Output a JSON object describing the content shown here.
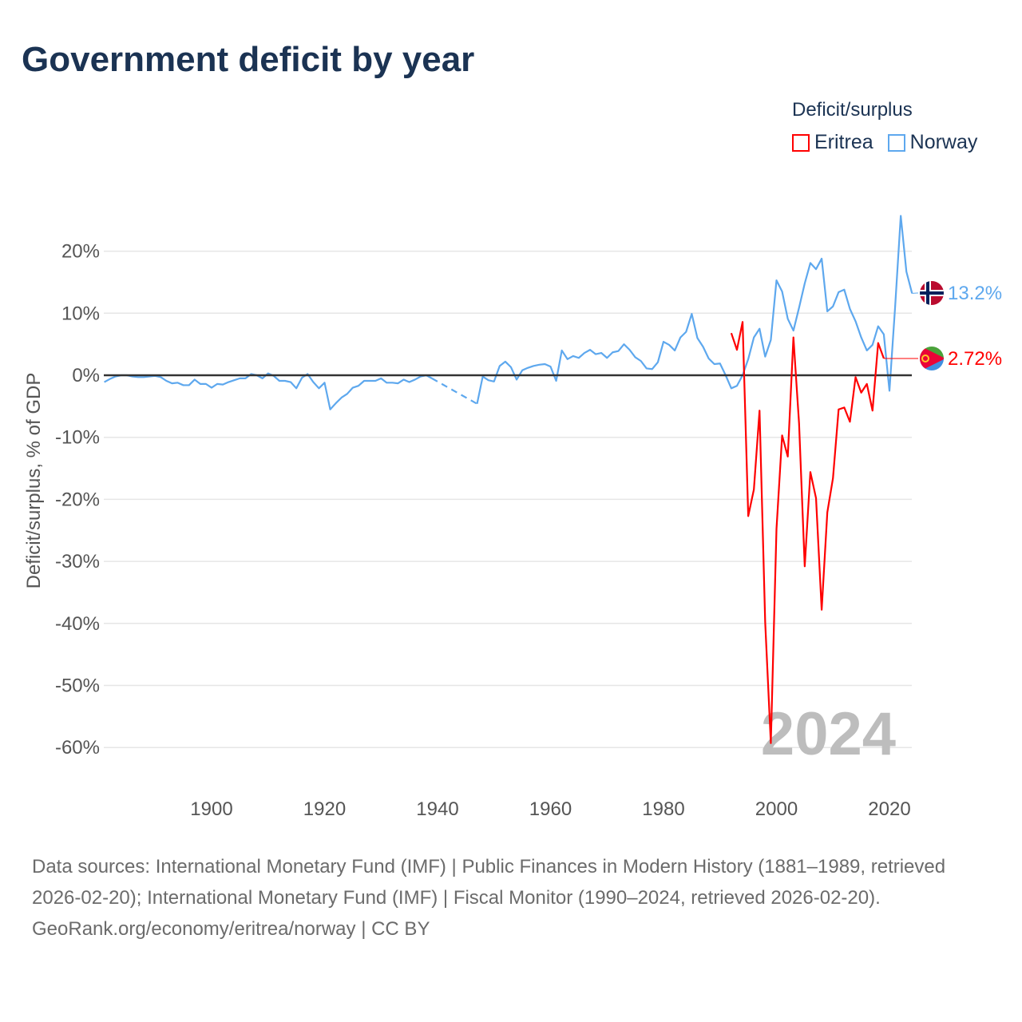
{
  "title": "Government deficit by year",
  "legend": {
    "title": "Deficit/surplus"
  },
  "watermark_year": "2024",
  "footer": {
    "sources": "Data sources: International Monetary Fund (IMF) | Public Finances in Modern History (1881–1989, retrieved 2026-02-20); International Monetary Fund (IMF) | Fiscal Monitor (1990–2024, retrieved 2026-02-20).",
    "credit": "GeoRank.org/economy/eritrea/norway | CC BY"
  },
  "chart_data": {
    "type": "line",
    "title": "Government deficit by year",
    "xlabel": "",
    "ylabel": "Deficit/surplus, % of GDP",
    "xlim": [
      1881,
      2024
    ],
    "ylim": [
      -60,
      25
    ],
    "x_ticks": [
      1900,
      1920,
      1940,
      1960,
      1980,
      2000,
      2020
    ],
    "y_ticks": [
      20,
      10,
      0,
      -10,
      -20,
      -30,
      -40,
      -50,
      -60
    ],
    "y_tick_labels": [
      "20%",
      "10%",
      "0%",
      "-10%",
      "-20%",
      "-30%",
      "-40%",
      "-50%",
      "-60%"
    ],
    "grid": true,
    "legend_position": "top-right",
    "series": [
      {
        "name": "Eritrea",
        "color": "#ff0000",
        "start_year": 1992,
        "values": [
          6.8,
          4.1,
          8.6,
          -22.7,
          -18.4,
          -5.7,
          -39.8,
          -59.3,
          -24.8,
          -9.7,
          -13.1,
          6.1,
          -7.8,
          -30.8,
          -15.6,
          -19.8,
          -37.8,
          -22.1,
          -16.6,
          -5.5,
          -5.2,
          -7.5,
          -0.3,
          -2.8,
          -1.4,
          -5.7,
          5.2,
          2.72
        ],
        "end_label": "2.72%"
      },
      {
        "name": "Norway",
        "color": "#5ea8ee",
        "start_year": 1881,
        "values": [
          -1.1,
          -0.6,
          -0.2,
          0,
          0,
          -0.2,
          -0.3,
          -0.3,
          -0.2,
          -0.1,
          -0.3,
          -0.9,
          -1.3,
          -1.2,
          -1.6,
          -1.6,
          -0.7,
          -1.4,
          -1.4,
          -2.0,
          -1.4,
          -1.5,
          -1.1,
          -0.8,
          -0.5,
          -0.5,
          0.2,
          0,
          -0.5,
          0.3,
          -0.1,
          -0.9,
          -0.9,
          -1.1,
          -2.1,
          -0.4,
          0.2,
          -1.1,
          -2.1,
          -1.2,
          -5.5,
          -4.5,
          -3.6,
          -3.0,
          -2.0,
          -1.7,
          -0.9,
          -0.9,
          -0.9,
          -0.5,
          -1.2,
          -1.2,
          -1.3,
          -0.7,
          -1.1,
          -0.7,
          -0.2,
          0,
          -0.5,
          null,
          null,
          null,
          null,
          null,
          null,
          null,
          -4.6,
          -0.2,
          -0.8,
          -1.0,
          1.5,
          2.2,
          1.3,
          -0.7,
          0.8,
          1.2,
          1.5,
          1.7,
          1.8,
          1.4,
          -0.9,
          4.0,
          2.6,
          3.1,
          2.8,
          3.6,
          4.1,
          3.4,
          3.6,
          2.8,
          3.7,
          3.9,
          5.0,
          4.1,
          2.9,
          2.3,
          1.1,
          1.0,
          2.1,
          5.4,
          4.9,
          4.0,
          6.1,
          7.0,
          9.9,
          6.0,
          4.6,
          2.7,
          1.8,
          1.9,
          0,
          -2.1,
          -1.7,
          0,
          2.6,
          6.1,
          7.5,
          3.0,
          5.7,
          15.3,
          13.5,
          9.1,
          7.2,
          10.9,
          14.8,
          18.1,
          17.1,
          18.8,
          10.3,
          11.1,
          13.4,
          13.8,
          10.7,
          8.7,
          6.1,
          4.0,
          4.9,
          7.9,
          6.6,
          -2.5,
          11.0,
          25.7,
          16.7,
          13.2
        ],
        "end_label": "13.2%"
      }
    ]
  }
}
